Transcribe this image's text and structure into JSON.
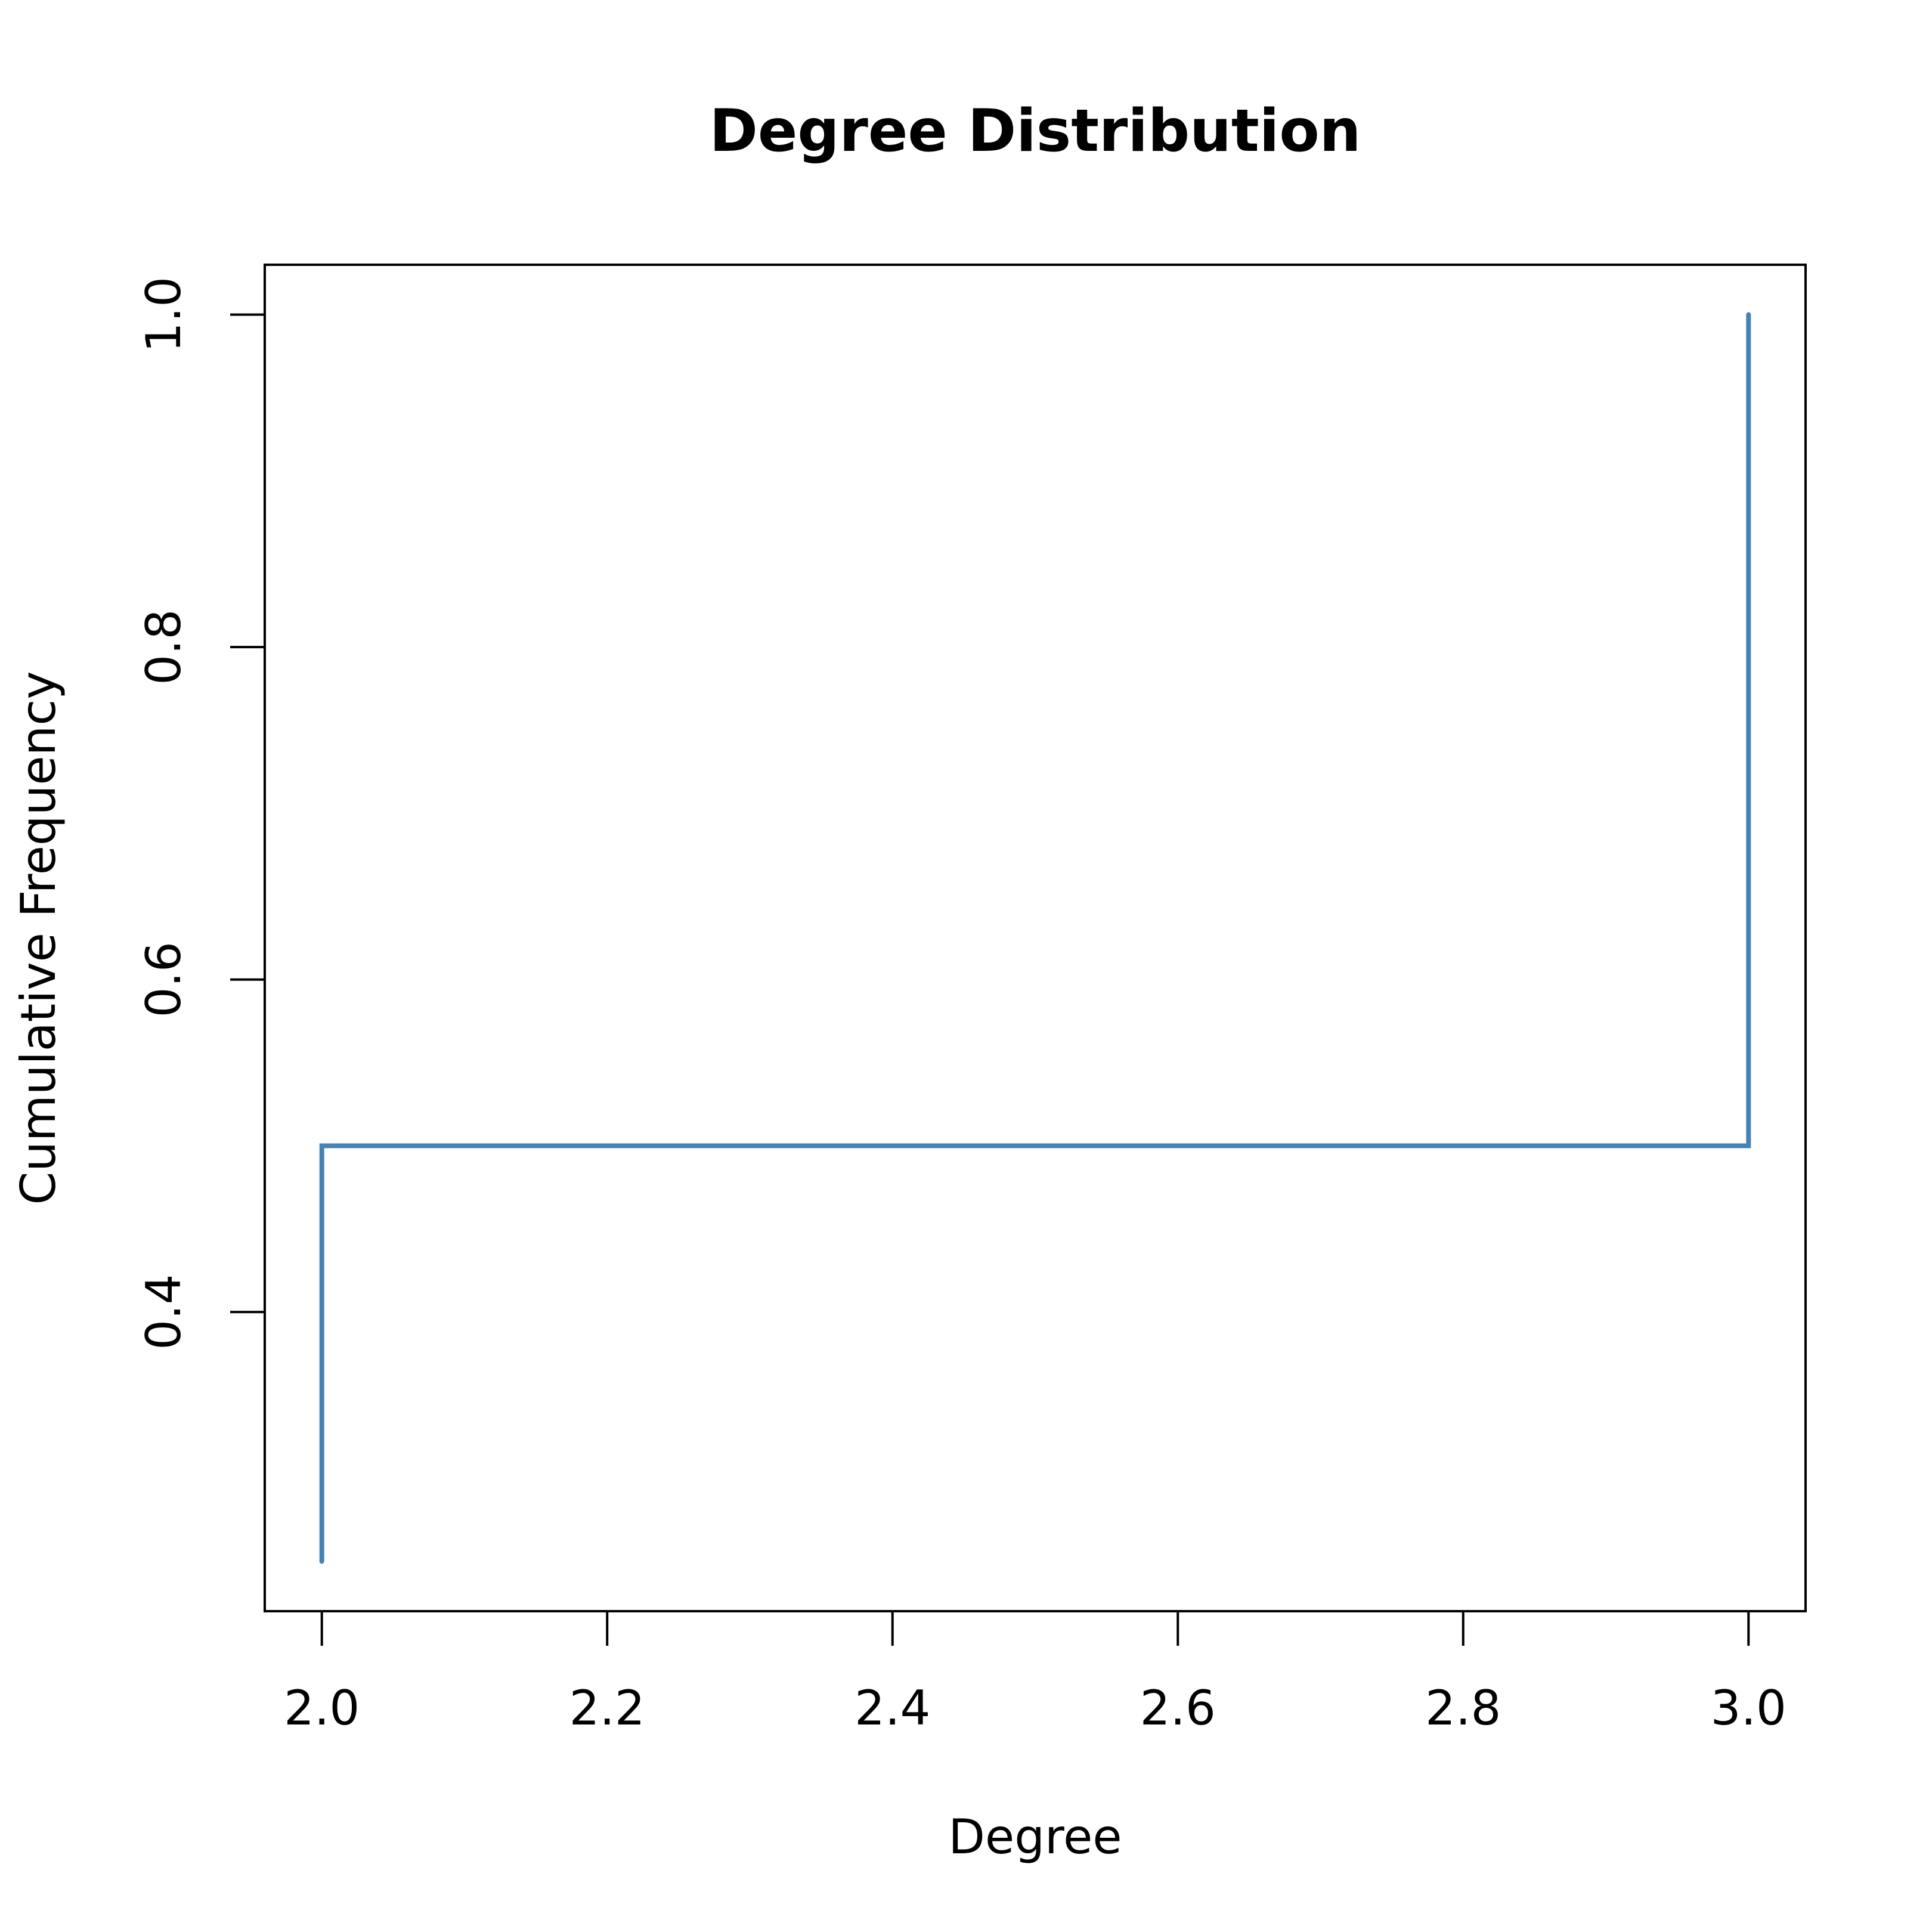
{
  "chart_data": {
    "type": "line",
    "title": "Degree Distribution",
    "x_label": "Degree",
    "y_label": "Cumulative Frequency",
    "x": [
      2,
      2,
      3,
      3
    ],
    "series": [
      {
        "color": "#4682b4",
        "values": [
          0.25,
          0.5,
          0.5,
          1
        ]
      }
    ],
    "xlim": [
      1.96,
      3.04
    ],
    "ylim": [
      0.22,
      1.03
    ],
    "xticks": [
      {
        "value": 2,
        "label": "2.0"
      },
      2.2,
      2.4,
      2.6,
      2.8,
      {
        "value": 3,
        "label": "3.0"
      }
    ],
    "yticks": [
      0.4,
      0.6,
      0.8,
      {
        "value": 1,
        "label": "1.0"
      }
    ],
    "grid": false
  }
}
